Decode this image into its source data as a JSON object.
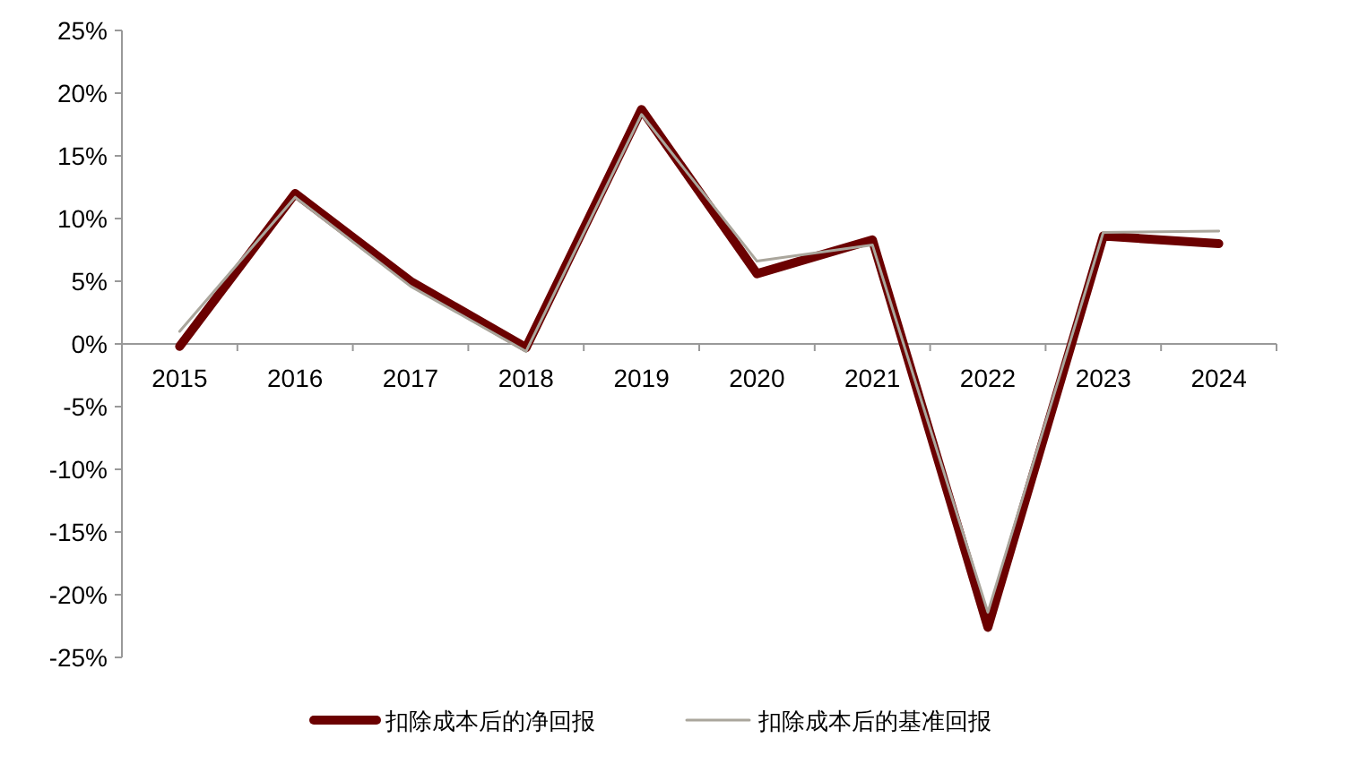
{
  "chart_data": {
    "type": "line",
    "categories": [
      "2015",
      "2016",
      "2017",
      "2018",
      "2019",
      "2020",
      "2021",
      "2022",
      "2023",
      "2024"
    ],
    "series": [
      {
        "name": "扣除成本后的净回报",
        "color": "#6b0000",
        "values": [
          -0.2,
          12.0,
          5.0,
          -0.3,
          18.7,
          5.6,
          8.3,
          -22.6,
          8.6,
          8.0
        ]
      },
      {
        "name": "扣除成本后的基准回报",
        "color": "#aaa69c",
        "values": [
          1.0,
          11.7,
          4.6,
          -0.6,
          18.3,
          6.6,
          7.9,
          -21.4,
          8.9,
          9.0
        ]
      }
    ],
    "ylim": [
      -25,
      25
    ],
    "yticks": [
      {
        "value": -25,
        "label": "-25%"
      },
      {
        "value": -20,
        "label": "-20%"
      },
      {
        "value": -15,
        "label": "-15%"
      },
      {
        "value": -10,
        "label": "-10%"
      },
      {
        "value": -5,
        "label": "-5%"
      },
      {
        "value": 0,
        "label": "0%"
      },
      {
        "value": 5,
        "label": "5%"
      },
      {
        "value": 10,
        "label": "10%"
      },
      {
        "value": 15,
        "label": "15%"
      },
      {
        "value": 20,
        "label": "20%"
      },
      {
        "value": 25,
        "label": "25%"
      }
    ],
    "grid": false,
    "legend": "bottom",
    "marker": "none",
    "line_style": "solid"
  }
}
